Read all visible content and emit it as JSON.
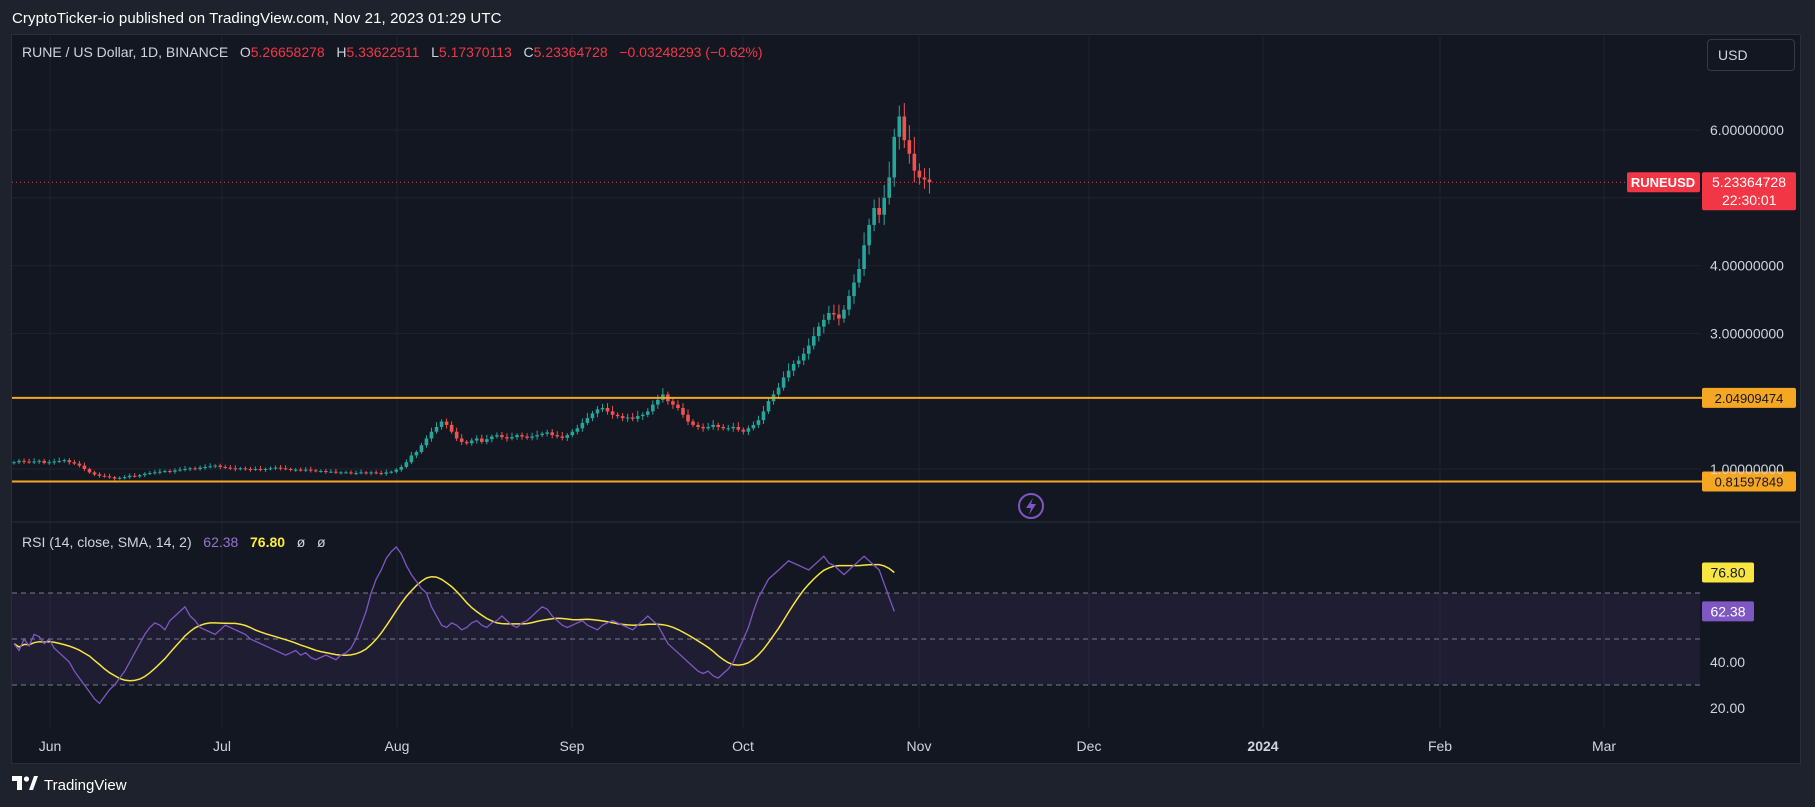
{
  "header": {
    "publisher_line": "CryptoTicker-io published on TradingView.com, Nov 21, 2023 01:29 UTC"
  },
  "legend": {
    "symbol": "RUNE / US Dollar, 1D, BINANCE",
    "o_label": "O",
    "o_value": "5.26658278",
    "h_label": "H",
    "h_value": "5.33622511",
    "l_label": "L",
    "l_value": "5.17370113",
    "c_label": "C",
    "c_value": "5.23364728",
    "change": "−0.03248293 (−0.62%)"
  },
  "currency_button": "USD",
  "rsi_legend": {
    "label": "RSI (14, close, SMA, 14, 2)",
    "rsi_value": "62.38",
    "sma_value": "76.80",
    "extra1": "ø",
    "extra2": "ø"
  },
  "footer": {
    "brand": "TradingView"
  },
  "colors": {
    "up": "#26a69a",
    "down": "#ef5350",
    "level": "#f5a623",
    "rsi": "#7e57c2",
    "rsi_sma": "#f7e541",
    "background": "#131722"
  },
  "chart_data": [
    {
      "type": "candlestick",
      "title": "RUNE / US Dollar, 1D, BINANCE",
      "y_ticks": [
        "6.00000000",
        "4.00000000",
        "3.00000000",
        "1.00000000"
      ],
      "x_ticks": [
        "Jun",
        "Jul",
        "Aug",
        "Sep",
        "Oct",
        "Nov",
        "Dec",
        "2024",
        "Feb",
        "Mar"
      ],
      "price_tag": {
        "symbol": "RUNEUSD",
        "price": "5.23364728",
        "countdown": "22:30:01"
      },
      "horizontal_levels": [
        {
          "value": 2.04909474,
          "label": "2.04909474"
        },
        {
          "value": 0.81597849,
          "label": "0.81597849"
        }
      ],
      "close_series": [
        1.1,
        1.12,
        1.11,
        1.1,
        1.11,
        1.12,
        1.09,
        1.1,
        1.11,
        1.12,
        1.13,
        1.1,
        1.08,
        1.05,
        1.0,
        0.95,
        0.92,
        0.9,
        0.89,
        0.88,
        0.86,
        0.87,
        0.88,
        0.9,
        0.89,
        0.91,
        0.93,
        0.94,
        0.95,
        0.96,
        0.97,
        0.96,
        0.98,
        0.99,
        1.0,
        1.01,
        1.0,
        1.02,
        1.03,
        1.04,
        1.05,
        1.03,
        1.02,
        1.01,
        1.0,
        1.01,
        1.0,
        0.99,
        1.0,
        0.99,
        1.0,
        1.01,
        1.02,
        1.01,
        1.0,
        0.99,
        0.99,
        0.98,
        0.99,
        0.98,
        0.97,
        0.97,
        0.96,
        0.96,
        0.95,
        0.95,
        0.95,
        0.94,
        0.94,
        0.95,
        0.94,
        0.95,
        0.94,
        0.93,
        0.95,
        0.96,
        0.99,
        1.03,
        1.1,
        1.2,
        1.25,
        1.35,
        1.45,
        1.55,
        1.62,
        1.7,
        1.65,
        1.55,
        1.45,
        1.4,
        1.38,
        1.42,
        1.45,
        1.4,
        1.44,
        1.48,
        1.5,
        1.47,
        1.45,
        1.47,
        1.5,
        1.48,
        1.46,
        1.48,
        1.5,
        1.52,
        1.54,
        1.5,
        1.48,
        1.46,
        1.5,
        1.55,
        1.6,
        1.68,
        1.75,
        1.82,
        1.88,
        1.9,
        1.85,
        1.8,
        1.78,
        1.75,
        1.76,
        1.74,
        1.78,
        1.8,
        1.85,
        1.95,
        2.02,
        2.1,
        2.0,
        1.95,
        1.9,
        1.8,
        1.7,
        1.65,
        1.62,
        1.6,
        1.62,
        1.65,
        1.62,
        1.6,
        1.6,
        1.62,
        1.58,
        1.55,
        1.6,
        1.65,
        1.72,
        1.85,
        2.0,
        2.1,
        2.2,
        2.35,
        2.45,
        2.55,
        2.6,
        2.7,
        2.82,
        2.96,
        3.1,
        3.2,
        3.3,
        3.28,
        3.22,
        3.35,
        3.55,
        3.75,
        3.95,
        4.3,
        4.6,
        4.85,
        4.75,
        5.0,
        5.3,
        5.9,
        6.2,
        5.85,
        5.65,
        5.4,
        5.3,
        5.27,
        5.23
      ],
      "rsi_series": [
        48,
        45,
        50,
        47,
        52,
        51,
        48,
        50,
        46,
        44,
        42,
        40,
        36,
        33,
        30,
        27,
        24,
        22,
        25,
        28,
        30,
        33,
        36,
        40,
        44,
        48,
        52,
        55,
        57,
        56,
        54,
        58,
        60,
        62,
        64,
        60,
        58,
        55,
        54,
        53,
        52,
        54,
        56,
        55,
        54,
        53,
        52,
        50,
        49,
        48,
        47,
        46,
        45,
        44,
        43,
        44,
        45,
        43,
        44,
        42,
        41,
        42,
        43,
        42,
        41,
        43,
        44,
        46,
        50,
        56,
        62,
        70,
        76,
        80,
        85,
        88,
        90,
        87,
        82,
        78,
        75,
        72,
        70,
        64,
        60,
        56,
        55,
        57,
        56,
        54,
        55,
        57,
        58,
        56,
        55,
        57,
        58,
        60,
        58,
        56,
        55,
        57,
        58,
        60,
        62,
        64,
        63,
        60,
        58,
        56,
        55,
        56,
        57,
        58,
        56,
        55,
        54,
        56,
        57,
        58,
        57,
        56,
        55,
        54,
        56,
        58,
        60,
        58,
        56,
        52,
        48,
        46,
        44,
        42,
        40,
        38,
        36,
        35,
        36,
        34,
        33,
        35,
        37,
        40,
        45,
        50,
        55,
        62,
        68,
        72,
        76,
        78,
        80,
        82,
        84,
        83,
        82,
        81,
        80,
        82,
        84,
        86,
        83,
        82,
        80,
        78,
        80,
        82,
        84,
        86,
        84,
        82,
        80,
        74,
        68,
        62
      ]
    }
  ]
}
